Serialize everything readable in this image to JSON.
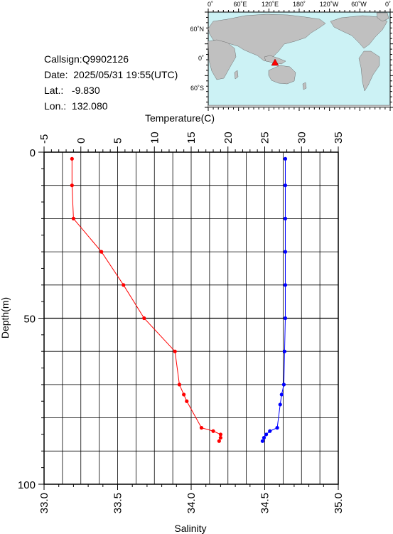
{
  "info": {
    "callsign": "Callsign:Q9902126",
    "date": "Date:  2025/05/31 19:55(UTC)",
    "lat": "Lat.:   -9.830",
    "lon": "Lon.:  132.080"
  },
  "map": {
    "top_labels": [
      "0˚",
      "60˚E",
      "120˚E",
      "180˚",
      "120˚W",
      "60˚W",
      "0˚"
    ],
    "lat_labels": [
      "60˚N",
      "0˚",
      "60˚S"
    ],
    "colors": {
      "ocean": "#ccf2f5",
      "land": "#c0c0c0",
      "marker": "#ff0000"
    }
  },
  "chart_data": {
    "type": "line",
    "x_top_label": "Temperature(C)",
    "x_bottom_label": "Salinity",
    "ylabel": "Depth(m)",
    "temperature_ticks": [
      "-5",
      "0",
      "5",
      "10",
      "15",
      "20",
      "25",
      "30",
      "35"
    ],
    "salinity_ticks": [
      "33.0",
      "33.5",
      "34.0",
      "34.5",
      "35.0"
    ],
    "depth_ticks": [
      "0",
      "50",
      "100"
    ],
    "xlim_temperature": [
      -5,
      35
    ],
    "xlim_salinity": [
      33.0,
      35.0
    ],
    "ylim_depth": [
      0,
      100
    ],
    "series": [
      {
        "quantity": "temperature",
        "color": "#0000ff",
        "points": [
          {
            "x": 27.8,
            "depth": 2
          },
          {
            "x": 27.8,
            "depth": 10
          },
          {
            "x": 27.8,
            "depth": 20
          },
          {
            "x": 27.8,
            "depth": 30
          },
          {
            "x": 27.8,
            "depth": 40
          },
          {
            "x": 27.8,
            "depth": 50
          },
          {
            "x": 27.7,
            "depth": 60
          },
          {
            "x": 27.6,
            "depth": 70
          },
          {
            "x": 27.3,
            "depth": 73
          },
          {
            "x": 27.1,
            "depth": 76
          },
          {
            "x": 26.7,
            "depth": 83
          },
          {
            "x": 25.7,
            "depth": 84
          },
          {
            "x": 25.2,
            "depth": 85
          },
          {
            "x": 24.9,
            "depth": 86
          },
          {
            "x": 24.7,
            "depth": 87
          }
        ]
      },
      {
        "quantity": "salinity",
        "color": "#ff0000",
        "points": [
          {
            "x": 33.19,
            "depth": 2
          },
          {
            "x": 33.19,
            "depth": 10
          },
          {
            "x": 33.2,
            "depth": 20
          },
          {
            "x": 33.39,
            "depth": 30
          },
          {
            "x": 33.54,
            "depth": 40
          },
          {
            "x": 33.68,
            "depth": 50
          },
          {
            "x": 33.89,
            "depth": 60
          },
          {
            "x": 33.92,
            "depth": 70
          },
          {
            "x": 33.95,
            "depth": 73
          },
          {
            "x": 33.97,
            "depth": 75
          },
          {
            "x": 34.07,
            "depth": 83
          },
          {
            "x": 34.15,
            "depth": 84
          },
          {
            "x": 34.2,
            "depth": 85
          },
          {
            "x": 34.2,
            "depth": 86
          },
          {
            "x": 34.19,
            "depth": 87
          }
        ]
      }
    ]
  }
}
